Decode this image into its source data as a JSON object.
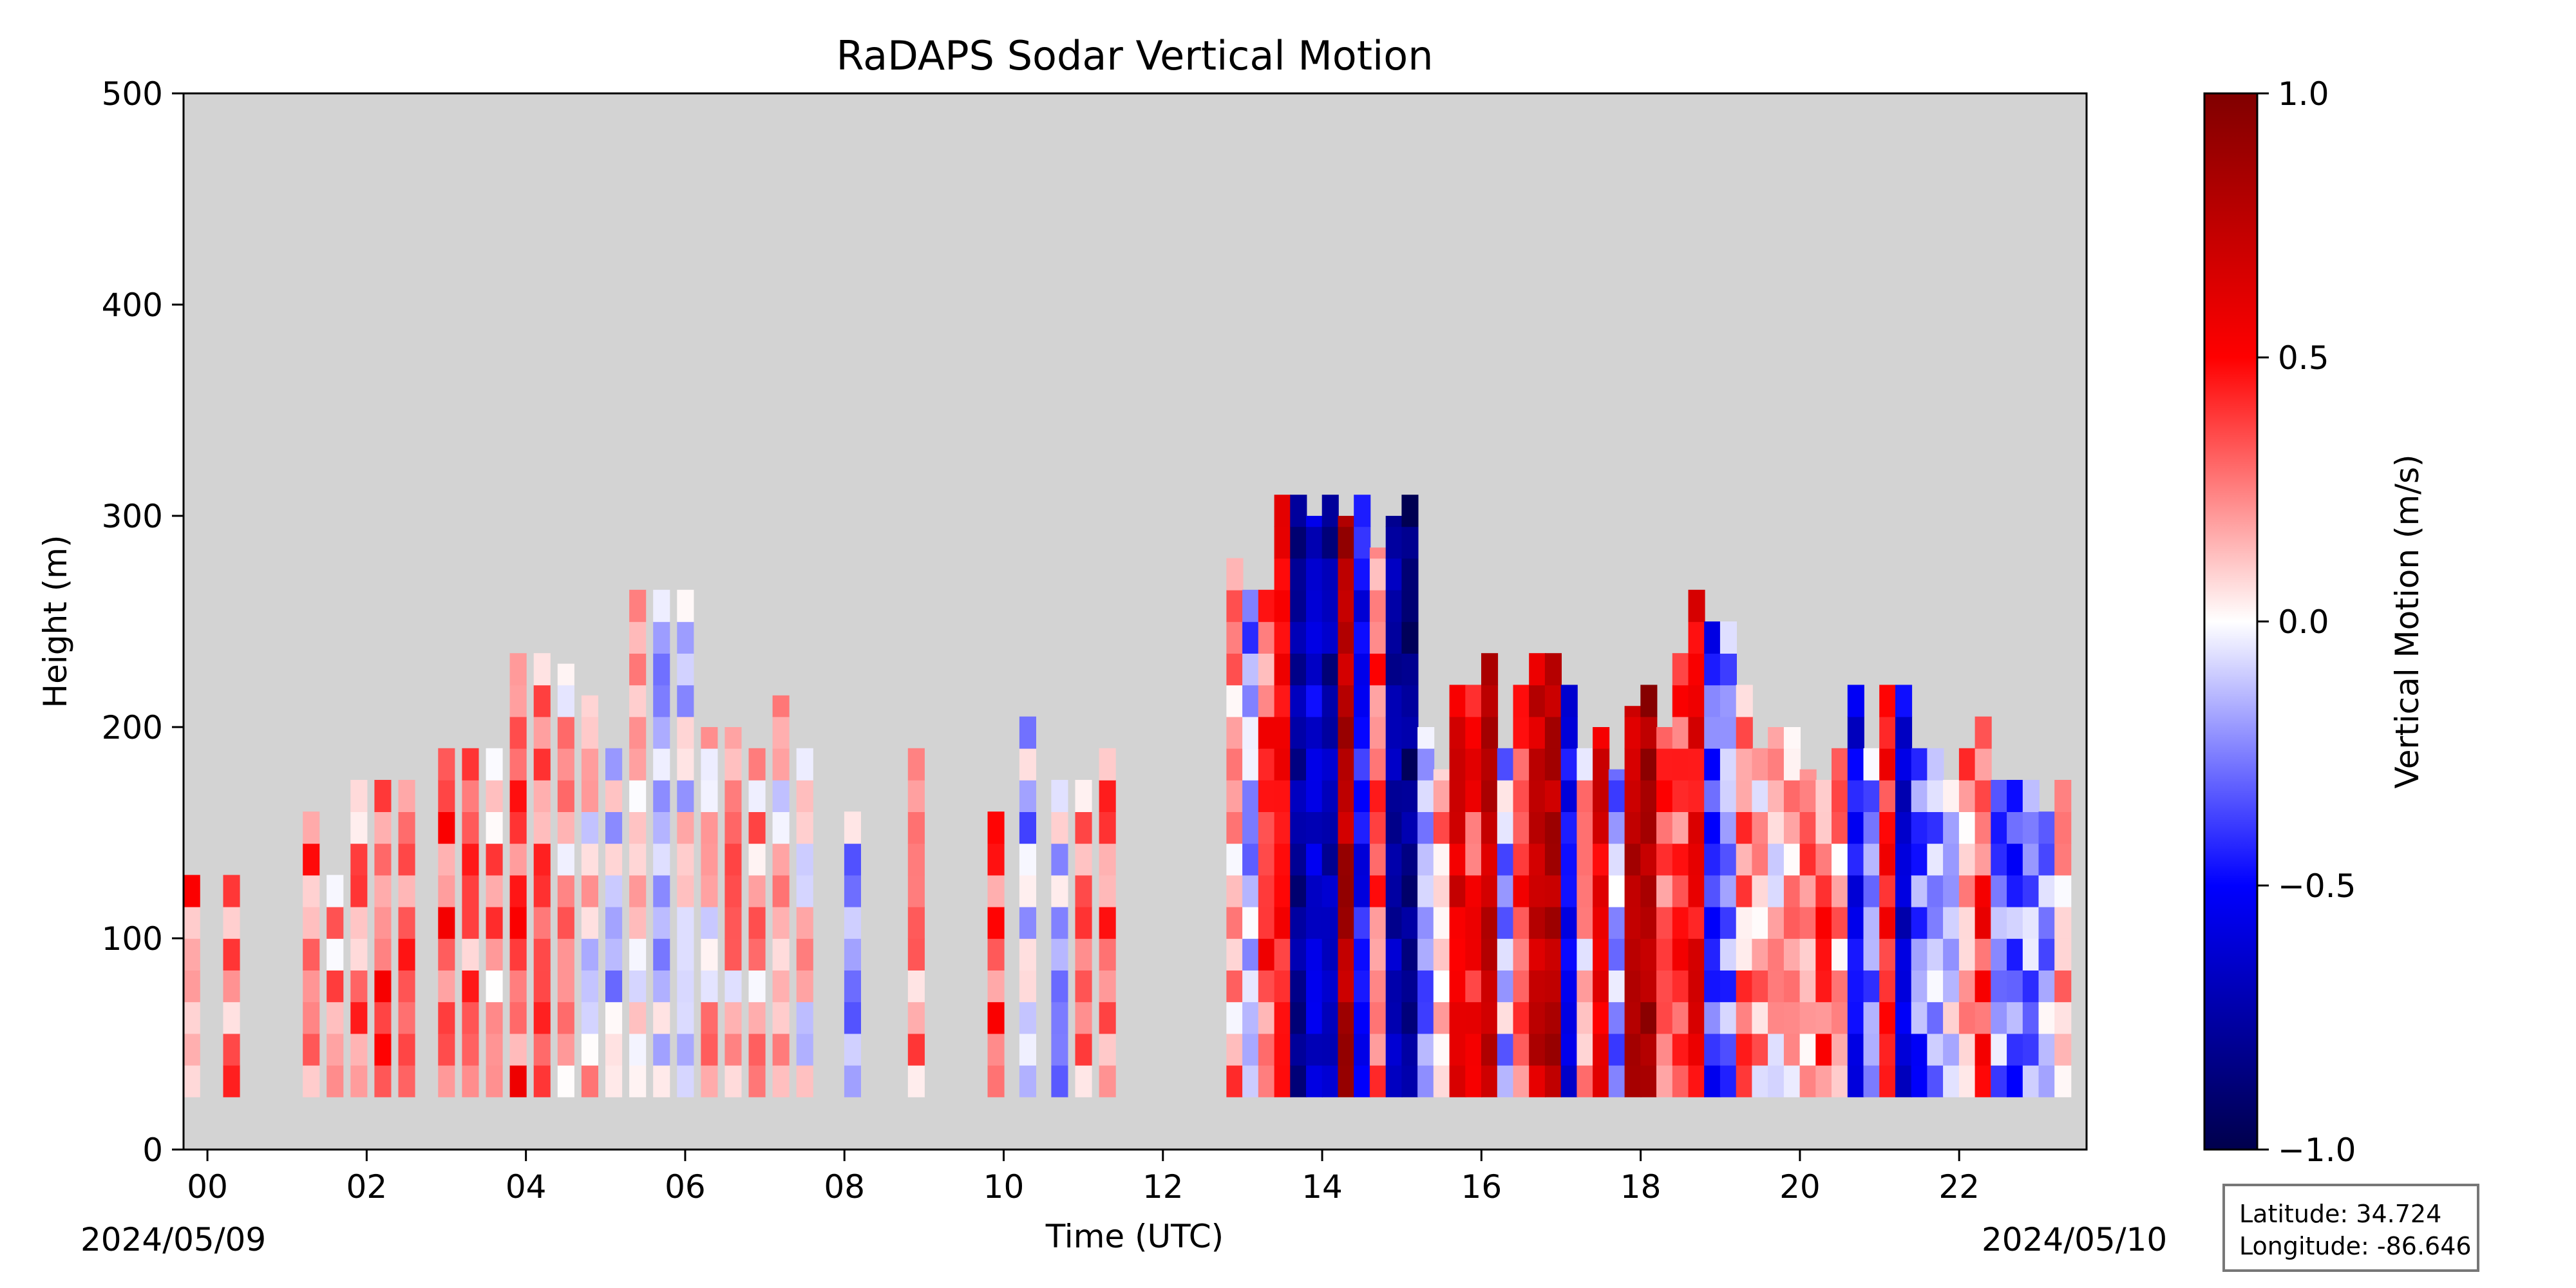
{
  "chart_data": {
    "type": "heatmap",
    "title": "RaDAPS Sodar Vertical Motion",
    "xlabel": "Time (UTC)",
    "ylabel": "Height (m)",
    "xlim": [
      -0.3,
      23.6
    ],
    "ylim": [
      0,
      500
    ],
    "x_ticks": [
      "00",
      "02",
      "04",
      "06",
      "08",
      "10",
      "12",
      "14",
      "16",
      "18",
      "20",
      "22"
    ],
    "y_ticks": [
      "0",
      "100",
      "200",
      "300",
      "400",
      "500"
    ],
    "start_date": "2024/05/09",
    "end_date": "2024/05/10",
    "grid": false,
    "background_color": "#d3d3d3",
    "colormap": "seismic",
    "colorbar": {
      "label": "Vertical Motion (m/s)",
      "range": [
        -1.0,
        1.0
      ],
      "ticks": [
        "1.0",
        "0.5",
        "0.0",
        "−0.5",
        "−1.0"
      ]
    },
    "height_range_m": [
      25,
      310
    ],
    "profiles": [
      {
        "t": -0.2,
        "top": 130,
        "w": 0.3
      },
      {
        "t": 0.3,
        "top": 130,
        "w": 0.25
      },
      {
        "t": 1.3,
        "top": 160,
        "w": 0.3
      },
      {
        "t": 1.6,
        "top": 130,
        "w": 0.2
      },
      {
        "t": 1.9,
        "top": 175,
        "w": 0.25
      },
      {
        "t": 2.2,
        "top": 175,
        "w": 0.35
      },
      {
        "t": 2.5,
        "top": 175,
        "w": 0.25
      },
      {
        "t": 3.0,
        "top": 190,
        "w": 0.35
      },
      {
        "t": 3.3,
        "top": 190,
        "w": 0.3
      },
      {
        "t": 3.6,
        "top": 190,
        "w": 0.2
      },
      {
        "t": 3.9,
        "top": 235,
        "w": 0.35
      },
      {
        "t": 4.2,
        "top": 235,
        "w": 0.25
      },
      {
        "t": 4.5,
        "top": 230,
        "w": 0.15
      },
      {
        "t": 4.8,
        "top": 215,
        "w": 0.05
      },
      {
        "t": 5.1,
        "top": 190,
        "w": -0.1
      },
      {
        "t": 5.4,
        "top": 265,
        "w": 0.05
      },
      {
        "t": 5.7,
        "top": 265,
        "w": -0.15
      },
      {
        "t": 6.0,
        "top": 265,
        "w": -0.05
      },
      {
        "t": 6.3,
        "top": 200,
        "w": 0.1
      },
      {
        "t": 6.6,
        "top": 200,
        "w": 0.15
      },
      {
        "t": 6.9,
        "top": 190,
        "w": 0.15
      },
      {
        "t": 7.2,
        "top": 215,
        "w": 0.1
      },
      {
        "t": 7.5,
        "top": 190,
        "w": 0.05
      },
      {
        "t": 8.1,
        "top": 160,
        "w": -0.15
      },
      {
        "t": 8.9,
        "top": 190,
        "w": 0.2
      },
      {
        "t": 9.9,
        "top": 160,
        "w": 0.35
      },
      {
        "t": 10.3,
        "top": 205,
        "w": -0.15
      },
      {
        "t": 10.7,
        "top": 175,
        "w": -0.1
      },
      {
        "t": 11.0,
        "top": 175,
        "w": 0.2
      },
      {
        "t": 11.3,
        "top": 190,
        "w": 0.25
      },
      {
        "t": 12.9,
        "top": 280,
        "w": 0.2
      },
      {
        "t": 13.1,
        "top": 265,
        "w": -0.2
      },
      {
        "t": 13.3,
        "top": 265,
        "w": 0.35
      },
      {
        "t": 13.5,
        "top": 310,
        "w": 0.5
      },
      {
        "t": 13.7,
        "top": 310,
        "w": -0.8
      },
      {
        "t": 13.9,
        "top": 300,
        "w": -0.6
      },
      {
        "t": 14.1,
        "top": 310,
        "w": -0.75
      },
      {
        "t": 14.3,
        "top": 300,
        "w": 0.8
      },
      {
        "t": 14.5,
        "top": 310,
        "w": -0.5
      },
      {
        "t": 14.7,
        "top": 285,
        "w": 0.3
      },
      {
        "t": 14.9,
        "top": 300,
        "w": -0.7
      },
      {
        "t": 15.1,
        "top": 310,
        "w": -0.85
      },
      {
        "t": 15.3,
        "top": 200,
        "w": -0.2
      },
      {
        "t": 15.5,
        "top": 180,
        "w": 0.2
      },
      {
        "t": 15.7,
        "top": 220,
        "w": 0.6
      },
      {
        "t": 15.9,
        "top": 220,
        "w": 0.4
      },
      {
        "t": 16.1,
        "top": 235,
        "w": 0.75
      },
      {
        "t": 16.3,
        "top": 190,
        "w": -0.15
      },
      {
        "t": 16.5,
        "top": 220,
        "w": 0.35
      },
      {
        "t": 16.7,
        "top": 235,
        "w": 0.7
      },
      {
        "t": 16.9,
        "top": 235,
        "w": 0.8
      },
      {
        "t": 17.1,
        "top": 220,
        "w": -0.55
      },
      {
        "t": 17.3,
        "top": 190,
        "w": 0.15
      },
      {
        "t": 17.5,
        "top": 200,
        "w": 0.6
      },
      {
        "t": 17.7,
        "top": 180,
        "w": -0.2
      },
      {
        "t": 17.9,
        "top": 210,
        "w": 0.75
      },
      {
        "t": 18.1,
        "top": 220,
        "w": 0.85
      },
      {
        "t": 18.3,
        "top": 200,
        "w": 0.3
      },
      {
        "t": 18.5,
        "top": 235,
        "w": 0.4
      },
      {
        "t": 18.7,
        "top": 265,
        "w": 0.55
      },
      {
        "t": 18.9,
        "top": 250,
        "w": -0.4
      },
      {
        "t": 19.1,
        "top": 250,
        "w": -0.25
      },
      {
        "t": 19.3,
        "top": 220,
        "w": 0.25
      },
      {
        "t": 19.5,
        "top": 190,
        "w": 0.15
      },
      {
        "t": 19.7,
        "top": 200,
        "w": 0.1
      },
      {
        "t": 19.9,
        "top": 200,
        "w": 0.15
      },
      {
        "t": 20.1,
        "top": 180,
        "w": 0.2
      },
      {
        "t": 20.3,
        "top": 175,
        "w": 0.3
      },
      {
        "t": 20.5,
        "top": 190,
        "w": 0.15
      },
      {
        "t": 20.7,
        "top": 220,
        "w": -0.55
      },
      {
        "t": 20.9,
        "top": 190,
        "w": -0.2
      },
      {
        "t": 21.1,
        "top": 220,
        "w": 0.45
      },
      {
        "t": 21.3,
        "top": 220,
        "w": -0.6
      },
      {
        "t": 21.5,
        "top": 190,
        "w": -0.3
      },
      {
        "t": 21.7,
        "top": 190,
        "w": -0.2
      },
      {
        "t": 21.9,
        "top": 175,
        "w": -0.1
      },
      {
        "t": 22.1,
        "top": 190,
        "w": 0.2
      },
      {
        "t": 22.3,
        "top": 205,
        "w": 0.4
      },
      {
        "t": 22.5,
        "top": 175,
        "w": -0.25
      },
      {
        "t": 22.7,
        "top": 175,
        "w": -0.3
      },
      {
        "t": 22.9,
        "top": 175,
        "w": -0.2
      },
      {
        "t": 23.1,
        "top": 160,
        "w": -0.15
      },
      {
        "t": 23.3,
        "top": 175,
        "w": 0.2
      }
    ]
  },
  "info_box": {
    "latitude": "Latitude: 34.724",
    "longitude": "Longitude: -86.646"
  }
}
